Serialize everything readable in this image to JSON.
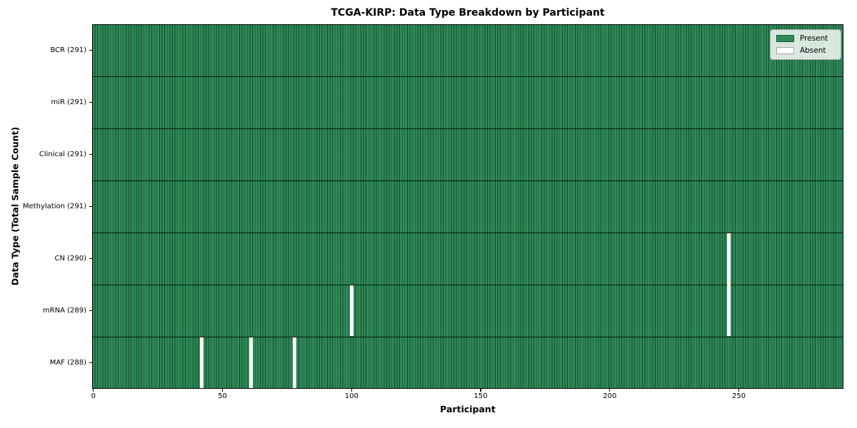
{
  "title": "TCGA-KIRP: Data Type Breakdown by Participant",
  "x_axis": {
    "label": "Participant"
  },
  "y_axis": {
    "label": "Data Type (Total Sample Count)"
  },
  "legend": {
    "items": [
      {
        "label": "Present",
        "color": "#2e8b57"
      },
      {
        "label": "Absent",
        "color": "#ffffff"
      }
    ]
  },
  "chart_data": {
    "type": "heatmap",
    "title": "TCGA-KIRP: Data Type Breakdown by Participant",
    "xlabel": "Participant",
    "ylabel": "Data Type (Total Sample Count)",
    "n_participants": 291,
    "x_range": [
      0,
      291
    ],
    "x_ticks": [
      0,
      50,
      100,
      150,
      200,
      250
    ],
    "grid": false,
    "legend_position": "upper-right",
    "colors": {
      "present": "#2e8b57",
      "absent": "#ffffff",
      "cell_edge": "rgba(0,0,0,0.5)",
      "row_divider": "rgba(0,0,0,0.8)"
    },
    "rows": [
      {
        "data_type": "BCR",
        "total_samples": 291,
        "tick_label": "BCR (291)",
        "absent_participant_indices": []
      },
      {
        "data_type": "miR",
        "total_samples": 291,
        "tick_label": "miR (291)",
        "absent_participant_indices": []
      },
      {
        "data_type": "Clinical",
        "total_samples": 291,
        "tick_label": "Clinical (291)",
        "absent_participant_indices": []
      },
      {
        "data_type": "Methylation",
        "total_samples": 291,
        "tick_label": "Methylation (291)",
        "absent_participant_indices": []
      },
      {
        "data_type": "CN",
        "total_samples": 290,
        "tick_label": "CN (290)",
        "absent_participant_indices": [
          246
        ]
      },
      {
        "data_type": "mRNA",
        "total_samples": 289,
        "tick_label": "mRNA (289)",
        "absent_participant_indices": [
          100,
          246
        ]
      },
      {
        "data_type": "MAF",
        "total_samples": 288,
        "tick_label": "MAF (288)",
        "absent_participant_indices": [
          42,
          61,
          78
        ]
      }
    ]
  }
}
